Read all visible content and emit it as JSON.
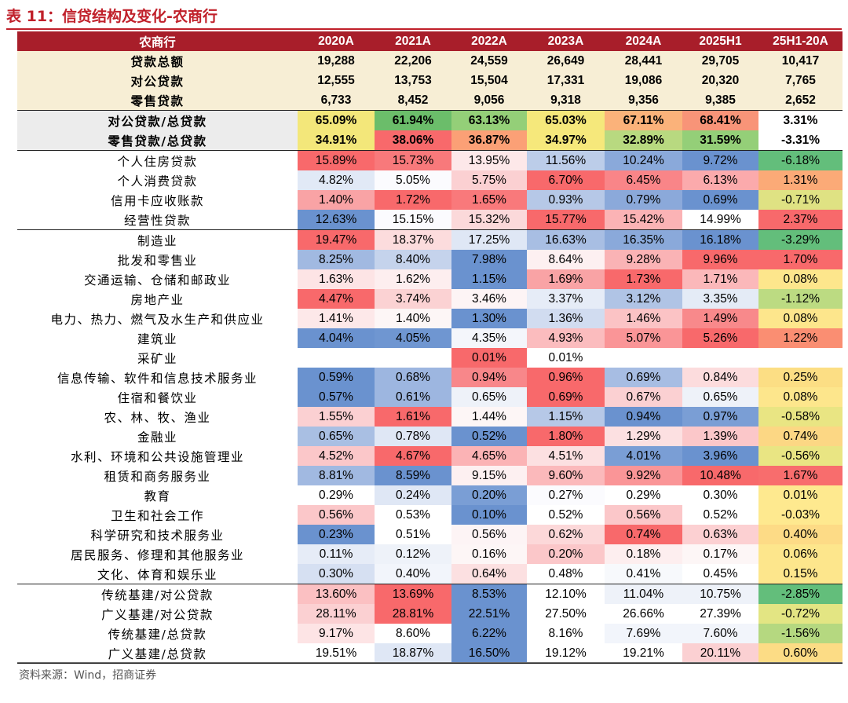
{
  "title": "表 11：信贷结构及变化-农商行",
  "source": "资料来源：Wind，招商证券",
  "header": [
    "农商行",
    "2020A",
    "2021A",
    "2022A",
    "2023A",
    "2024A",
    "2025H1",
    "25H1-20A"
  ],
  "rows": [
    {
      "label": "贷款总额",
      "values": [
        "19,288",
        "22,206",
        "24,559",
        "26,649",
        "28,441",
        "29,705",
        "10,417"
      ],
      "colors": [
        "#f7eed5",
        "#f7eed5",
        "#f7eed5",
        "#f7eed5",
        "#f7eed5",
        "#f7eed5",
        "#f7eed5"
      ],
      "style": "total"
    },
    {
      "label": "对公贷款",
      "values": [
        "12,555",
        "13,753",
        "15,504",
        "17,331",
        "19,086",
        "20,320",
        "7,765"
      ],
      "colors": [
        "#f7eed5",
        "#f7eed5",
        "#f7eed5",
        "#f7eed5",
        "#f7eed5",
        "#f7eed5",
        "#f7eed5"
      ],
      "style": "total"
    },
    {
      "label": "零售贷款",
      "values": [
        "6,733",
        "8,452",
        "9,056",
        "9,318",
        "9,356",
        "9,385",
        "2,652"
      ],
      "colors": [
        "#f7eed5",
        "#f7eed5",
        "#f7eed5",
        "#f7eed5",
        "#f7eed5",
        "#f7eed5",
        "#f7eed5"
      ],
      "style": "total-end"
    },
    {
      "label": "对公贷款/总贷款",
      "values": [
        "65.09%",
        "61.94%",
        "63.13%",
        "65.03%",
        "67.11%",
        "68.41%",
        "3.31%"
      ],
      "colors": [
        "#f3e77a",
        "#6bbd6a",
        "#94cf78",
        "#f5e87b",
        "#fbb27a",
        "#f89478",
        "#ffffff"
      ],
      "style": "share"
    },
    {
      "label": "零售贷款/总贷款",
      "values": [
        "34.91%",
        "38.06%",
        "36.87%",
        "34.97%",
        "32.89%",
        "31.59%",
        "-3.31%"
      ],
      "colors": [
        "#f3e77a",
        "#f8696b",
        "#fba076",
        "#f6e87b",
        "#b8d980",
        "#94cf78",
        "#ffffff"
      ],
      "style": "share-end"
    },
    {
      "label": "个人住房贷款",
      "values": [
        "15.89%",
        "15.73%",
        "13.95%",
        "11.56%",
        "10.24%",
        "9.72%",
        "-6.18%"
      ],
      "colors": [
        "#f8696b",
        "#f8797b",
        "#fde8e9",
        "#bccde9",
        "#8aa9da",
        "#6a92cf",
        "#63be7b"
      ],
      "style": "normal"
    },
    {
      "label": "个人消费贷款",
      "values": [
        "4.82%",
        "5.05%",
        "5.75%",
        "6.70%",
        "6.45%",
        "6.13%",
        "1.31%"
      ],
      "colors": [
        "#e1e9f6",
        "#fbfbfe",
        "#fbd0d2",
        "#f8696b",
        "#f98588",
        "#fbaaac",
        "#fbaa77"
      ],
      "style": "normal"
    },
    {
      "label": "信用卡应收账款",
      "values": [
        "1.40%",
        "1.72%",
        "1.65%",
        "0.93%",
        "0.79%",
        "0.69%",
        "-0.71%"
      ],
      "colors": [
        "#f9a3a5",
        "#f8696b",
        "#f9797b",
        "#b6c8e7",
        "#8ba9da",
        "#6a92cf",
        "#dfe283"
      ],
      "style": "normal"
    },
    {
      "label": "经营性贷款",
      "values": [
        "12.63%",
        "15.15%",
        "15.32%",
        "15.77%",
        "15.42%",
        "14.99%",
        "2.37%"
      ],
      "colors": [
        "#6a92cf",
        "#fbfbfe",
        "#fbd9da",
        "#f8696b",
        "#fbb3b5",
        "#ffffff",
        "#f8696b"
      ],
      "style": "normal-end"
    },
    {
      "label": "制造业",
      "values": [
        "19.47%",
        "18.37%",
        "17.25%",
        "16.63%",
        "16.35%",
        "16.18%",
        "-3.29%"
      ],
      "colors": [
        "#f8696b",
        "#fcdcdd",
        "#dfe7f5",
        "#a8bee3",
        "#8aa9da",
        "#6a92cf",
        "#63be7b"
      ],
      "style": "normal"
    },
    {
      "label": "批发和零售业",
      "values": [
        "8.25%",
        "8.40%",
        "7.98%",
        "8.64%",
        "9.28%",
        "9.96%",
        "1.70%"
      ],
      "colors": [
        "#a1b9e1",
        "#c5d3ec",
        "#6a92cf",
        "#fdf0f1",
        "#fab3b5",
        "#f8696b",
        "#f8696b"
      ],
      "style": "normal"
    },
    {
      "label": "交通运输、仓储和邮政业",
      "values": [
        "1.63%",
        "1.62%",
        "1.15%",
        "1.69%",
        "1.73%",
        "1.71%",
        "0.08%"
      ],
      "colors": [
        "#fde4e5",
        "#fdeeef",
        "#6a92cf",
        "#f9a3a5",
        "#f8696b",
        "#fbb8ba",
        "#fde68c"
      ],
      "style": "normal"
    },
    {
      "label": "房地产业",
      "values": [
        "4.47%",
        "3.74%",
        "3.46%",
        "3.37%",
        "3.12%",
        "3.35%",
        "-1.12%"
      ],
      "colors": [
        "#f8696b",
        "#fbd2d3",
        "#fdf4f5",
        "#e6ecf7",
        "#b0c4e5",
        "#e4ebf6",
        "#bcdb82"
      ],
      "style": "normal"
    },
    {
      "label": "电力、热力、燃气及水生产和供应业",
      "values": [
        "1.41%",
        "1.40%",
        "1.30%",
        "1.36%",
        "1.46%",
        "1.49%",
        "0.08%"
      ],
      "colors": [
        "#fde8e9",
        "#fdf6f6",
        "#6a92cf",
        "#d1dcf0",
        "#fbc3c5",
        "#f8898b",
        "#fde68c"
      ],
      "style": "normal"
    },
    {
      "label": "建筑业",
      "values": [
        "4.04%",
        "4.05%",
        "4.35%",
        "4.93%",
        "5.07%",
        "5.26%",
        "1.22%"
      ],
      "colors": [
        "#6a92cf",
        "#6f96d1",
        "#f4f6fb",
        "#fbbcbe",
        "#fa9597",
        "#f8696b",
        "#fa8e72"
      ],
      "style": "normal"
    },
    {
      "label": "采矿业",
      "values": [
        "",
        "",
        "0.01%",
        "0.01%",
        "",
        "",
        ""
      ],
      "colors": [
        "#ffffff",
        "#ffffff",
        "#f8696b",
        "#ffffff",
        "#ffffff",
        "#ffffff",
        "#ffffff"
      ],
      "style": "normal"
    },
    {
      "label": "信息传输、软件和信息技术服务业",
      "values": [
        "0.59%",
        "0.68%",
        "0.94%",
        "0.96%",
        "0.69%",
        "0.84%",
        "0.25%"
      ],
      "colors": [
        "#6a92cf",
        "#9db6e0",
        "#f8878a",
        "#f8696b",
        "#a7bde3",
        "#fcdcdd",
        "#fcde84"
      ],
      "style": "normal"
    },
    {
      "label": "住宿和餐饮业",
      "values": [
        "0.57%",
        "0.61%",
        "0.65%",
        "0.69%",
        "0.67%",
        "0.65%",
        "0.08%"
      ],
      "colors": [
        "#6a92cf",
        "#9db6e0",
        "#eef2f9",
        "#f8696b",
        "#fbd0d2",
        "#eef2f9",
        "#fde68c"
      ],
      "style": "normal"
    },
    {
      "label": "农、林、牧、渔业",
      "values": [
        "1.55%",
        "1.61%",
        "1.44%",
        "1.15%",
        "0.94%",
        "0.97%",
        "-0.58%"
      ],
      "colors": [
        "#fbd0d2",
        "#f8696b",
        "#fdf6f6",
        "#b6c8e7",
        "#6a92cf",
        "#7a9ed5",
        "#e9e583"
      ],
      "style": "normal"
    },
    {
      "label": "金融业",
      "values": [
        "0.65%",
        "0.78%",
        "0.52%",
        "1.80%",
        "1.29%",
        "1.39%",
        "0.74%"
      ],
      "colors": [
        "#a9bfe3",
        "#dfe7f5",
        "#6a92cf",
        "#f8696b",
        "#fce0e1",
        "#fbc7c9",
        "#fcd784"
      ],
      "style": "normal"
    },
    {
      "label": "水利、环境和公共设施管理业",
      "values": [
        "4.52%",
        "4.67%",
        "4.65%",
        "4.51%",
        "4.01%",
        "3.96%",
        "-0.56%"
      ],
      "colors": [
        "#fbc7c9",
        "#f8696b",
        "#fbb3b5",
        "#fce0e1",
        "#7a9ed5",
        "#6a92cf",
        "#e9e583"
      ],
      "style": "normal"
    },
    {
      "label": "租赁和商务服务业",
      "values": [
        "8.81%",
        "8.59%",
        "9.15%",
        "9.60%",
        "9.92%",
        "10.48%",
        "1.67%"
      ],
      "colors": [
        "#a1b9e1",
        "#6a92cf",
        "#fdf0f1",
        "#fbb9bb",
        "#fa9597",
        "#f8696b",
        "#f86d6d"
      ],
      "style": "normal"
    },
    {
      "label": "教育",
      "values": [
        "0.29%",
        "0.24%",
        "0.20%",
        "0.27%",
        "0.29%",
        "0.30%",
        "0.01%"
      ],
      "colors": [
        "#ffffff",
        "#dfe7f5",
        "#7a9ed5",
        "#fbfbfe",
        "#ffffff",
        "#ffffff",
        "#fee98f"
      ],
      "style": "normal"
    },
    {
      "label": "卫生和社会工作",
      "values": [
        "0.56%",
        "0.53%",
        "0.10%",
        "0.52%",
        "0.56%",
        "0.52%",
        "-0.03%"
      ],
      "colors": [
        "#fbc7c9",
        "#ffffff",
        "#6a92cf",
        "#ffffff",
        "#fbc7c9",
        "#ffffff",
        "#fee98f"
      ],
      "style": "normal"
    },
    {
      "label": "科学研究和技术服务业",
      "values": [
        "0.23%",
        "0.51%",
        "0.56%",
        "0.62%",
        "0.74%",
        "0.63%",
        "0.40%"
      ],
      "colors": [
        "#6a92cf",
        "#ffffff",
        "#fdf4f5",
        "#fcd8d9",
        "#f8696b",
        "#fcd0d2",
        "#fddb86"
      ],
      "style": "normal"
    },
    {
      "label": "居民服务、修理和其他服务业",
      "values": [
        "0.11%",
        "0.12%",
        "0.16%",
        "0.20%",
        "0.18%",
        "0.17%",
        "0.06%"
      ],
      "colors": [
        "#e6ecf7",
        "#eef2f9",
        "#fdf6f6",
        "#fbc7c9",
        "#fdeeef",
        "#fdf6f6",
        "#fde68c"
      ],
      "style": "normal"
    },
    {
      "label": "文化、体育和娱乐业",
      "values": [
        "0.30%",
        "0.40%",
        "0.64%",
        "0.48%",
        "0.41%",
        "0.45%",
        "0.15%"
      ],
      "colors": [
        "#d6e0f2",
        "#f2f5fb",
        "#fce0e1",
        "#ffffff",
        "#f7f9fc",
        "#ffffff",
        "#fde68c"
      ],
      "style": "normal-end"
    },
    {
      "label": "传统基建/对公贷款",
      "values": [
        "13.60%",
        "13.69%",
        "8.53%",
        "12.10%",
        "11.04%",
        "10.75%",
        "-2.85%"
      ],
      "colors": [
        "#fbc0c2",
        "#f8696b",
        "#6a92cf",
        "#ffffff",
        "#eef2f9",
        "#eef2f9",
        "#63be7b"
      ],
      "style": "normal"
    },
    {
      "label": "广义基建/对公贷款",
      "values": [
        "28.11%",
        "28.81%",
        "22.51%",
        "27.50%",
        "26.66%",
        "27.39%",
        "-0.72%"
      ],
      "colors": [
        "#fbd0d2",
        "#f8696b",
        "#6a92cf",
        "#ffffff",
        "#ffffff",
        "#ffffff",
        "#e3e583"
      ],
      "style": "normal"
    },
    {
      "label": "传统基建/总贷款",
      "values": [
        "9.17%",
        "8.60%",
        "6.22%",
        "8.16%",
        "7.69%",
        "7.60%",
        "-1.56%"
      ],
      "colors": [
        "#fde4e5",
        "#ffffff",
        "#6a92cf",
        "#ffffff",
        "#f2f5fb",
        "#f2f5fb",
        "#b5d880"
      ],
      "style": "normal"
    },
    {
      "label": "广义基建/总贷款",
      "values": [
        "19.51%",
        "18.87%",
        "16.50%",
        "19.12%",
        "19.21%",
        "20.11%",
        "0.60%"
      ],
      "colors": [
        "#ffffff",
        "#dfe7f5",
        "#6a92cf",
        "#ffffff",
        "#ffffff",
        "#fbd0d2",
        "#fcdc85"
      ],
      "style": "normal-end"
    }
  ]
}
